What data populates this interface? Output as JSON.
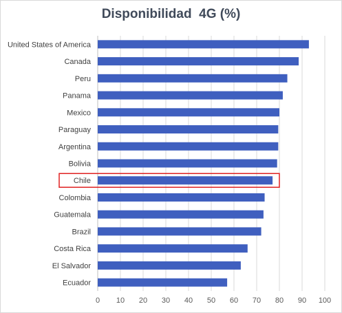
{
  "chart_data": {
    "type": "bar",
    "orientation": "horizontal",
    "title": "Disponibilidad  4G (%)",
    "categories": [
      "United States of America",
      "Canada",
      "Peru",
      "Panama",
      "Mexico",
      "Paraguay",
      "Argentina",
      "Bolivia",
      "Chile",
      "Colombia",
      "Guatemala",
      "Brazil",
      "Costa Rica",
      "El Salvador",
      "Ecuador"
    ],
    "values": [
      93,
      88.5,
      83.5,
      81.5,
      80,
      79.5,
      79.5,
      79,
      77,
      73.5,
      73,
      72,
      66,
      63,
      57
    ],
    "xlim": [
      0,
      100
    ],
    "xticks": [
      0,
      10,
      20,
      30,
      40,
      50,
      60,
      70,
      80,
      90,
      100
    ],
    "grid": "vertical",
    "bar_color": "#3f5fbf",
    "grid_color": "#d9d9d9",
    "highlight": {
      "category": "Chile",
      "color": "#e02020"
    }
  }
}
